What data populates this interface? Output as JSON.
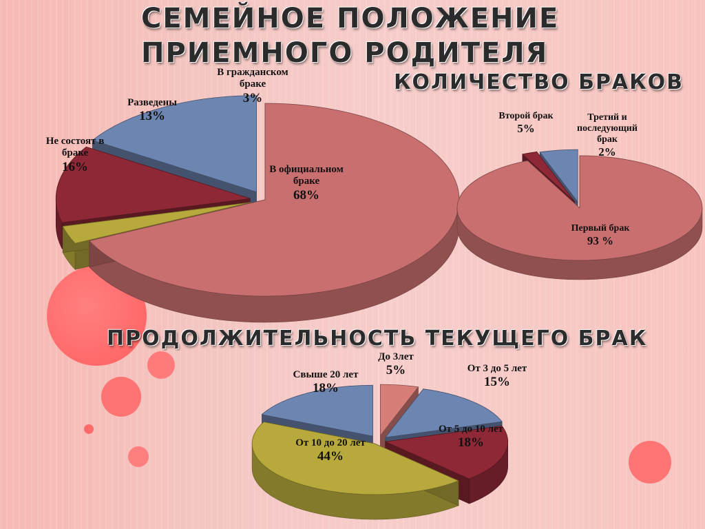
{
  "title": {
    "line1": "СЕМЕЙНОЕ ПОЛОЖЕНИЕ",
    "line2": "ПРИЕМНОГО РОДИТЕЛЯ"
  },
  "colors": {
    "pink": "#c96f6f",
    "red": "#8f2836",
    "blue": "#6d85b1",
    "olive": "#b7a93c",
    "salmon": "#d77e79",
    "deco_circle": "#ff6b6b"
  },
  "chart_data": [
    {
      "type": "pie",
      "title": "",
      "slices": [
        {
          "label": "В официальном браке",
          "value": 68,
          "display": "68%"
        },
        {
          "label": "Не состоят в браке",
          "value": 16,
          "display": "16%"
        },
        {
          "label": "Разведены",
          "value": 13,
          "display": "13%"
        },
        {
          "label": "В гражданском браке",
          "value": 3,
          "display": "3%"
        }
      ]
    },
    {
      "type": "pie",
      "title": "КОЛИЧЕСТВО БРАКОВ",
      "slices": [
        {
          "label": "Первый брак",
          "value": 93,
          "display": "93 %"
        },
        {
          "label": "Второй брак",
          "value": 5,
          "display": "5%"
        },
        {
          "label": "Третий и последующий брак",
          "value": 2,
          "display": "2%"
        }
      ]
    },
    {
      "type": "pie",
      "title": "ПРОДОЛЖИТЕЛЬНОСТЬ ТЕКУЩЕГО БРАК",
      "slices": [
        {
          "label": "До 3лет",
          "value": 5,
          "display": "5%"
        },
        {
          "label": "От 3 до 5 лет",
          "value": 15,
          "display": "15%"
        },
        {
          "label": "От 5 до 10 лет",
          "value": 18,
          "display": "18%"
        },
        {
          "label": "От 10 до 20 лет",
          "value": 44,
          "display": "44%"
        },
        {
          "label": "Свыше 20 лет",
          "value": 18,
          "display": "18%"
        }
      ]
    }
  ]
}
